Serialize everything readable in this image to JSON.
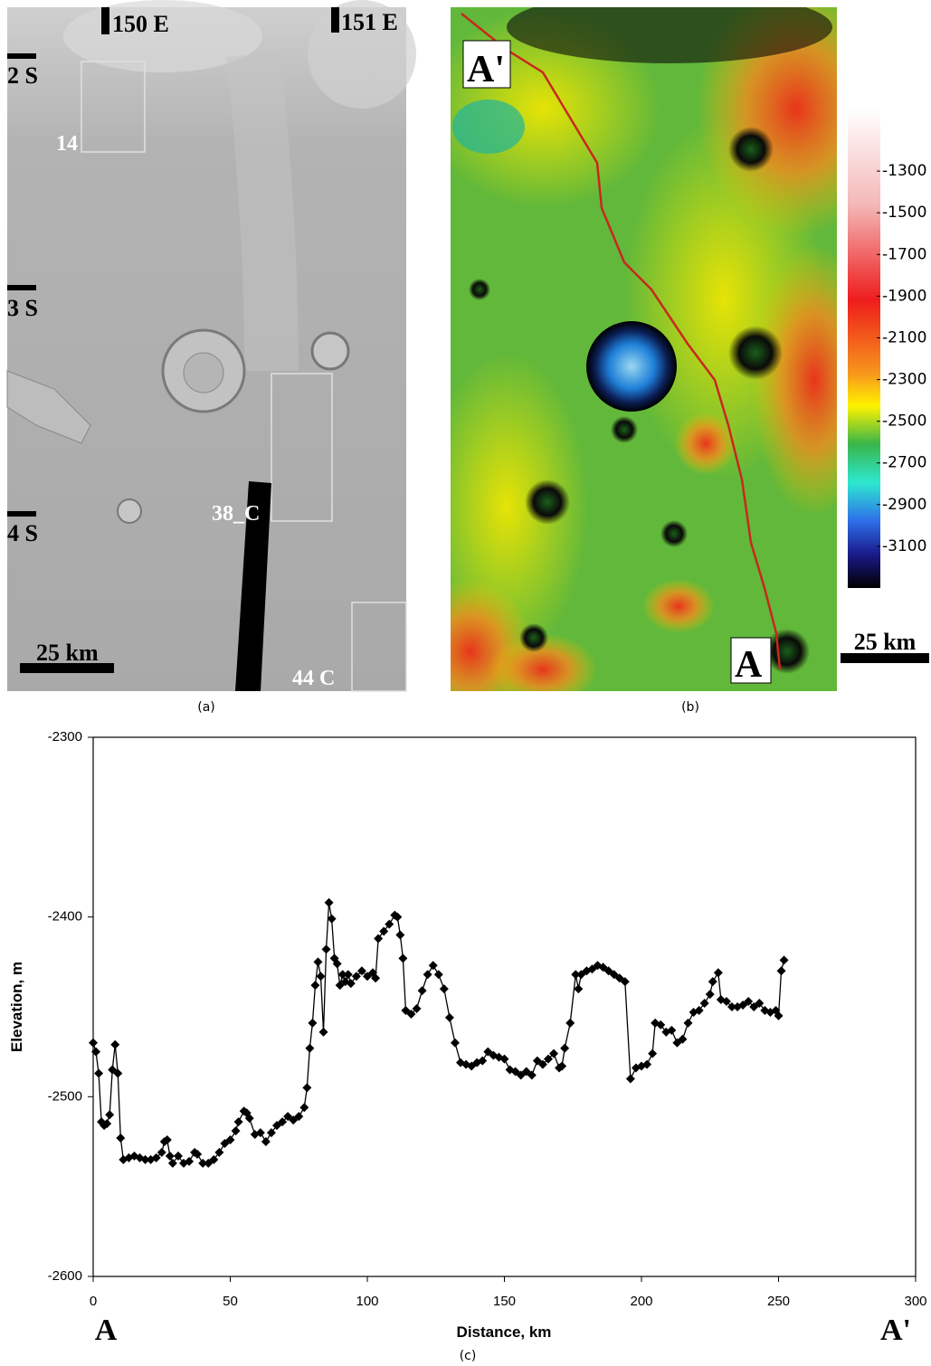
{
  "panel_a": {
    "caption": "(a)",
    "lon_labels": [
      "150 E",
      "151 E"
    ],
    "lat_labels": [
      "2 S",
      "3 S",
      "4 S"
    ],
    "image_labels": [
      "14",
      "38_C",
      "44 C"
    ],
    "scale_bar": "25 km"
  },
  "panel_b": {
    "caption": "(b)",
    "start_label": "A",
    "end_label": "A'",
    "scale_bar": "25 km",
    "colorbar": {
      "lim": [
        -3300,
        -1000
      ],
      "ticks": [
        -1300,
        -1500,
        -1700,
        -1900,
        -2100,
        -2300,
        -2500,
        -2700,
        -2900,
        -3100
      ]
    }
  },
  "chart_data": {
    "type": "line",
    "caption": "(c)",
    "xlabel": "Distance, km",
    "ylabel": "Elevation, m",
    "start_label": "A",
    "end_label": "A'",
    "color": "#000000",
    "marker": "diamond",
    "xlim": [
      0,
      300
    ],
    "xticks": [
      0,
      50,
      100,
      150,
      200,
      250,
      300
    ],
    "ylim": [
      -2600,
      -2300
    ],
    "yticks": [
      -2600,
      -2500,
      -2400,
      -2300
    ],
    "x": [
      0,
      1,
      2,
      3,
      4,
      5,
      6,
      7,
      8,
      9,
      10,
      11,
      13,
      15,
      17,
      19,
      21,
      23,
      25,
      26,
      27,
      28,
      29,
      31,
      33,
      35,
      37,
      38,
      40,
      42,
      44,
      46,
      48,
      50,
      52,
      53,
      55,
      56,
      57,
      59,
      61,
      63,
      65,
      67,
      69,
      71,
      73,
      75,
      77,
      78,
      79,
      80,
      81,
      82,
      83,
      84,
      85,
      86,
      87,
      88,
      89,
      90,
      91,
      92,
      93,
      94,
      96,
      98,
      100,
      102,
      103,
      104,
      106,
      108,
      110,
      111,
      112,
      113,
      114,
      116,
      118,
      120,
      122,
      124,
      126,
      128,
      130,
      132,
      134,
      136,
      138,
      140,
      142,
      144,
      146,
      148,
      150,
      152,
      154,
      156,
      158,
      160,
      162,
      164,
      166,
      168,
      170,
      171,
      172,
      174,
      176,
      177,
      178,
      180,
      182,
      184,
      186,
      188,
      190,
      192,
      194,
      196,
      198,
      200,
      202,
      204,
      205,
      207,
      209,
      211,
      213,
      215,
      217,
      219,
      221,
      223,
      225,
      226,
      228,
      229,
      231,
      233,
      235,
      237,
      239,
      241,
      243,
      245,
      247,
      249,
      250,
      251,
      252
    ],
    "values": [
      -2470,
      -2475,
      -2487,
      -2514,
      -2516,
      -2515,
      -2510,
      -2485,
      -2471,
      -2487,
      -2523,
      -2535,
      -2534,
      -2533,
      -2534,
      -2535,
      -2535,
      -2534,
      -2531,
      -2525,
      -2524,
      -2533,
      -2537,
      -2533,
      -2537,
      -2536,
      -2531,
      -2532,
      -2537,
      -2537,
      -2535,
      -2531,
      -2526,
      -2524,
      -2519,
      -2514,
      -2508,
      -2509,
      -2512,
      -2521,
      -2520,
      -2525,
      -2520,
      -2516,
      -2514,
      -2511,
      -2513,
      -2511,
      -2506,
      -2495,
      -2473,
      -2459,
      -2438,
      -2425,
      -2433,
      -2464,
      -2418,
      -2392,
      -2401,
      -2423,
      -2426,
      -2438,
      -2432,
      -2436,
      -2432,
      -2437,
      -2433,
      -2430,
      -2433,
      -2431,
      -2434,
      -2412,
      -2408,
      -2404,
      -2399,
      -2400,
      -2410,
      -2423,
      -2452,
      -2454,
      -2451,
      -2441,
      -2432,
      -2427,
      -2432,
      -2440,
      -2456,
      -2470,
      -2481,
      -2482,
      -2483,
      -2481,
      -2480,
      -2475,
      -2477,
      -2478,
      -2479,
      -2485,
      -2486,
      -2488,
      -2486,
      -2488,
      -2480,
      -2482,
      -2479,
      -2476,
      -2484,
      -2483,
      -2473,
      -2459,
      -2432,
      -2440,
      -2432,
      -2430,
      -2429,
      -2427,
      -2428,
      -2430,
      -2432,
      -2434,
      -2436,
      -2490,
      -2484,
      -2483,
      -2482,
      -2476,
      -2459,
      -2460,
      -2464,
      -2463,
      -2470,
      -2468,
      -2459,
      -2453,
      -2452,
      -2448,
      -2443,
      -2436,
      -2431,
      -2446,
      -2447,
      -2450,
      -2450,
      -2449,
      -2447,
      -2450,
      -2448,
      -2452,
      -2453,
      -2452,
      -2455,
      -2430,
      -2424
    ]
  }
}
